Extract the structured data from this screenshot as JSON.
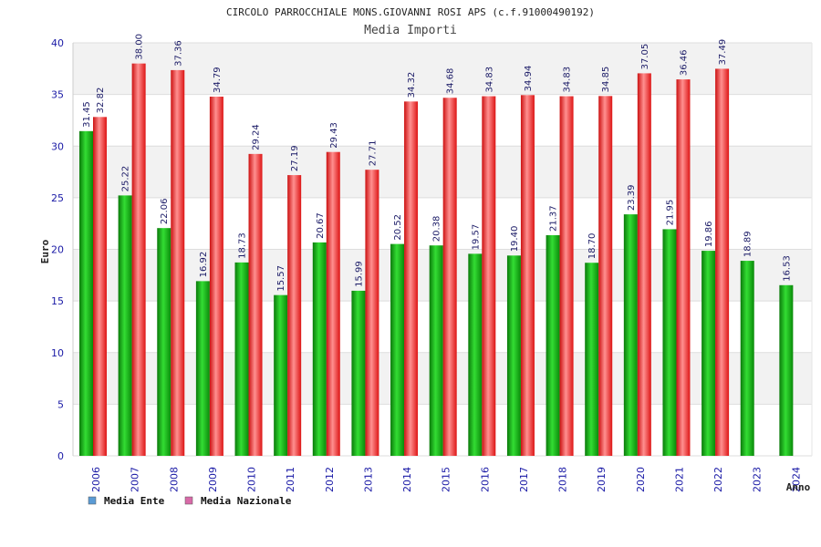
{
  "chart_data": {
    "type": "bar",
    "title": "CIRCOLO PARROCCHIALE MONS.GIOVANNI ROSI APS (c.f.91000490192)",
    "subtitle": "Media Importi",
    "ylabel": "Euro",
    "xlabel": "Anno",
    "ylim": [
      0,
      40
    ],
    "yticks": [
      "0",
      "5",
      "10",
      "15",
      "20",
      "25",
      "30",
      "35",
      "40"
    ],
    "grid": true,
    "legend_position": "bottom-left",
    "categories": [
      "2006",
      "2007",
      "2008",
      "2009",
      "2010",
      "2011",
      "2012",
      "2013",
      "2014",
      "2015",
      "2016",
      "2017",
      "2018",
      "2019",
      "2020",
      "2021",
      "2022",
      "2023",
      "2024"
    ],
    "series": [
      {
        "name": "Media Ente",
        "color": "#11aa11",
        "legend_color": "#5b9bd5",
        "values": [
          31.45,
          25.22,
          22.06,
          16.92,
          18.73,
          15.57,
          20.67,
          15.99,
          20.52,
          20.38,
          19.57,
          19.4,
          21.37,
          18.7,
          23.39,
          21.95,
          19.86,
          18.89,
          16.53
        ],
        "labels": [
          "31.45",
          "25.22",
          "22.06",
          "16.92",
          "18.73",
          "15.57",
          "20.67",
          "15.99",
          "20.52",
          "20.38",
          "19.57",
          "19.40",
          "21.37",
          "18.70",
          "23.39",
          "21.95",
          "19.86",
          "18.89",
          "16.53"
        ]
      },
      {
        "name": "Media Nazionale",
        "color": "#ee2222",
        "legend_color": "#d86aa8",
        "values": [
          32.82,
          38.0,
          37.36,
          34.79,
          29.24,
          27.19,
          29.43,
          27.71,
          34.32,
          34.68,
          34.83,
          34.94,
          34.83,
          34.85,
          37.05,
          36.46,
          37.49,
          null,
          null
        ],
        "labels": [
          "32.82",
          "38.00",
          "37.36",
          "34.79",
          "29.24",
          "27.19",
          "29.43",
          "27.71",
          "34.32",
          "34.68",
          "34.83",
          "34.94",
          "34.83",
          "34.85",
          "37.05",
          "36.46",
          "37.49",
          "",
          ""
        ]
      }
    ]
  }
}
